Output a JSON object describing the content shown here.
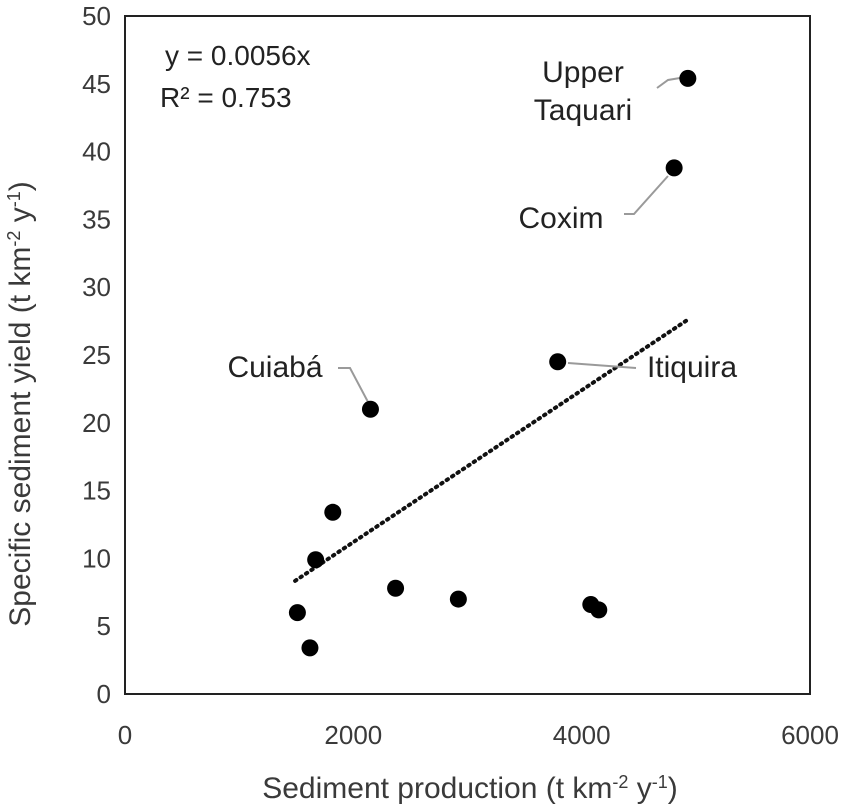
{
  "chart_data": {
    "type": "scatter",
    "xlabel": "Sediment production (t km-2 y-1)",
    "ylabel": "Specific sediment yield (t km-2 y-1)",
    "xlim": [
      0,
      6000
    ],
    "ylim": [
      0,
      50
    ],
    "x_ticks": [
      0,
      2000,
      4000,
      6000
    ],
    "y_ticks": [
      0,
      5,
      10,
      15,
      20,
      25,
      30,
      35,
      40,
      45,
      50
    ],
    "grid": false,
    "points": [
      {
        "x": 1510,
        "y": 6.0
      },
      {
        "x": 1620,
        "y": 3.4
      },
      {
        "x": 1670,
        "y": 9.9
      },
      {
        "x": 1820,
        "y": 13.4
      },
      {
        "x": 2150,
        "y": 21.0,
        "label": "Cuiabá"
      },
      {
        "x": 2370,
        "y": 7.8
      },
      {
        "x": 2920,
        "y": 7.0
      },
      {
        "x": 3790,
        "y": 24.5,
        "label": "Itiquira"
      },
      {
        "x": 4080,
        "y": 6.6
      },
      {
        "x": 4150,
        "y": 6.2
      },
      {
        "x": 4810,
        "y": 38.8,
        "label": "Coxim"
      },
      {
        "x": 4930,
        "y": 45.4,
        "label": "Upper Taquari"
      }
    ],
    "trendline": {
      "equation": "y = 0.0056x",
      "r2_text": "R² = 0.753",
      "slope": 0.0056,
      "x_range": [
        1490,
        4930
      ],
      "style": "dotted"
    }
  }
}
